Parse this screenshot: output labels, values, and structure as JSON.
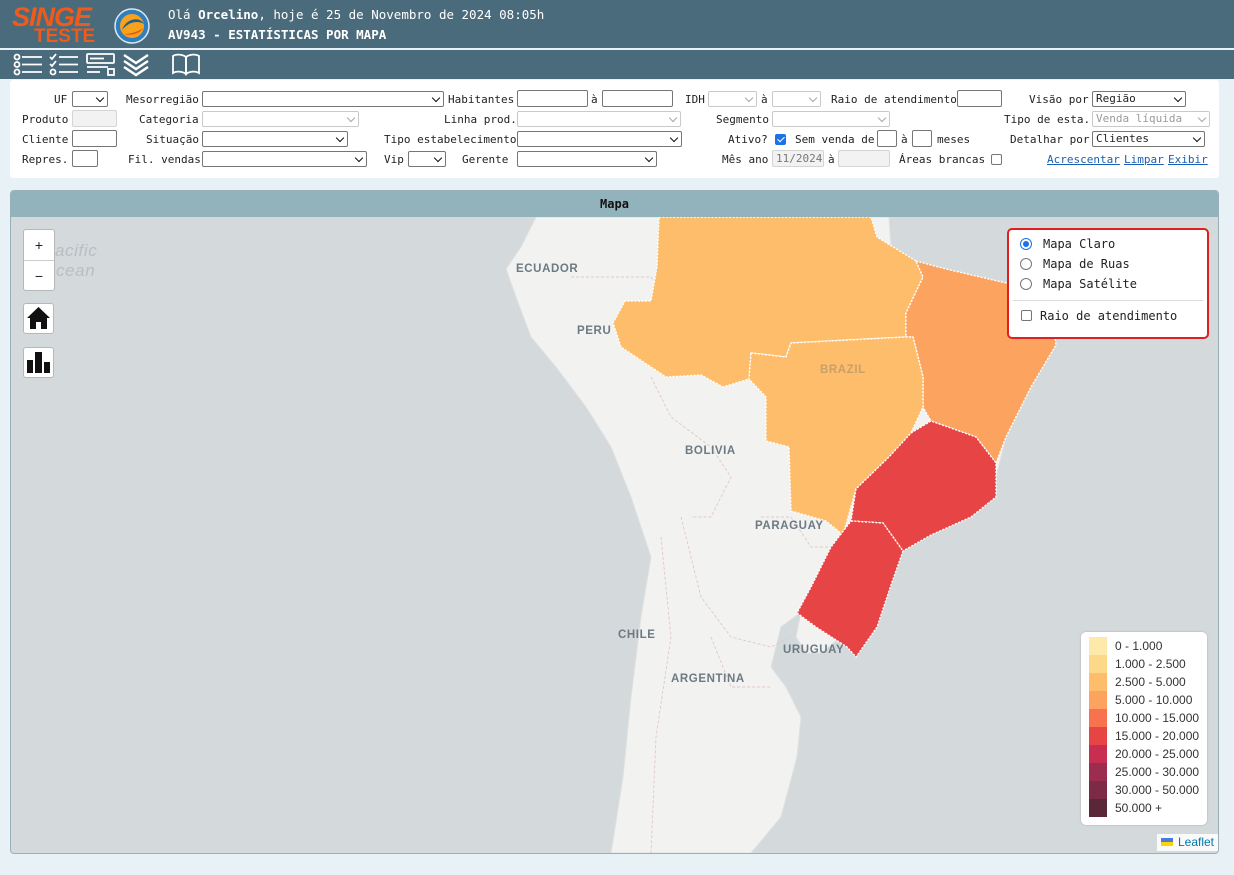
{
  "header": {
    "logo_top": "SINGE",
    "logo_bottom": "TESTE",
    "greeting_prefix": "Olá ",
    "user": "Orcelino",
    "greeting_suffix": ", hoje é 25 de Novembro de 2024 08:05h",
    "screen_title": "AV943 - ESTATÍSTICAS POR MAPA"
  },
  "toolbar": {
    "icons": [
      "list-icon",
      "checklist-icon",
      "form-icon",
      "double-chevron-down-icon",
      "book-icon"
    ]
  },
  "filters": {
    "uf": {
      "label": "UF",
      "value": ""
    },
    "mesorregiao": {
      "label": "Mesorregião",
      "value": ""
    },
    "habitantes": {
      "label": "Habitantes",
      "from": "",
      "to": ""
    },
    "idh": {
      "label": "IDH",
      "from": "",
      "to": ""
    },
    "range_sep": "à",
    "raio": {
      "label": "Raio de atendimento",
      "value": ""
    },
    "visao": {
      "label": "Visão por",
      "value": "Região"
    },
    "produto": {
      "label": "Produto",
      "value": ""
    },
    "categoria": {
      "label": "Categoria",
      "value": ""
    },
    "linha": {
      "label": "Linha prod.",
      "value": ""
    },
    "segmento": {
      "label": "Segmento",
      "value": ""
    },
    "tipo_esta": {
      "label": "Tipo de esta.",
      "value": "Venda líquida"
    },
    "cliente": {
      "label": "Cliente",
      "value": ""
    },
    "situacao": {
      "label": "Situação",
      "value": ""
    },
    "tipo_estab": {
      "label": "Tipo estabelecimento",
      "value": ""
    },
    "ativo": {
      "label": "Ativo?",
      "checked": true
    },
    "sem_venda": {
      "label": "Sem venda de",
      "from": "",
      "to": "",
      "suffix": "meses"
    },
    "detalhar": {
      "label": "Detalhar por",
      "value": "Clientes"
    },
    "repres": {
      "label": "Repres.",
      "value": ""
    },
    "fil_vendas": {
      "label": "Fil. vendas",
      "value": ""
    },
    "vip": {
      "label": "Vip",
      "value": ""
    },
    "gerente": {
      "label": "Gerente",
      "value": ""
    },
    "mes_ano": {
      "label": "Mês ano",
      "from": "11/2024",
      "to": ""
    },
    "areas_brancas": {
      "label": "Áreas brancas",
      "checked": false
    },
    "links": {
      "add": "Acrescentar",
      "clear": "Limpar",
      "show": "Exibir"
    }
  },
  "map": {
    "panel_title": "Mapa",
    "labels": {
      "pacific_1": "acific",
      "pacific_2": "cean",
      "ecuador": "ECUADOR",
      "peru": "PERU",
      "brazil": "BRAZIL",
      "bolivia": "BOLIVIA",
      "paraguay": "PARAGUAY",
      "chile": "CHILE",
      "uruguay": "URUGUAY",
      "argentina": "ARGENTINA"
    },
    "zoom_in": "+",
    "zoom_out": "−",
    "layers": {
      "options": [
        "Mapa Claro",
        "Mapa de Ruas",
        "Mapa Satélite"
      ],
      "selected": "Mapa Claro",
      "overlay": "Raio de atendimento",
      "overlay_checked": false
    },
    "regions": [
      {
        "name": "Norte",
        "color": "#fdbd6a",
        "bin": "2.500 - 5.000"
      },
      {
        "name": "Centro-Oeste",
        "color": "#fdbd6a",
        "bin": "2.500 - 5.000"
      },
      {
        "name": "Nordeste",
        "color": "#fca35f",
        "bin": "5.000 - 10.000"
      },
      {
        "name": "Sudeste",
        "color": "#e74445",
        "bin": "15.000 - 20.000"
      },
      {
        "name": "Sul",
        "color": "#e74445",
        "bin": "15.000 - 20.000"
      }
    ],
    "legend": [
      {
        "label": "0 - 1.000",
        "color": "#fde9a9"
      },
      {
        "label": "1.000 - 2.500",
        "color": "#fdd889"
      },
      {
        "label": "2.500 - 5.000",
        "color": "#fdbd6a"
      },
      {
        "label": "5.000 - 10.000",
        "color": "#fca35f"
      },
      {
        "label": "10.000 - 15.000",
        "color": "#f8724f"
      },
      {
        "label": "15.000 - 20.000",
        "color": "#e74445"
      },
      {
        "label": "20.000 - 25.000",
        "color": "#c72e4f"
      },
      {
        "label": "25.000 - 30.000",
        "color": "#9c2c50"
      },
      {
        "label": "30.000 - 50.000",
        "color": "#7c2a45"
      },
      {
        "label": "50.000 +",
        "color": "#5a2638"
      }
    ],
    "attribution": "Leaflet"
  }
}
